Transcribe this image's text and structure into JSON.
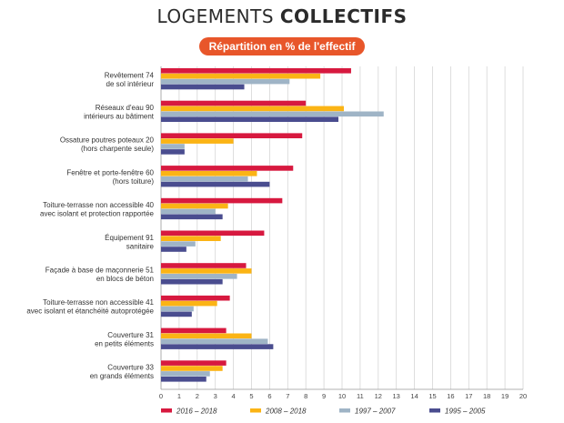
{
  "header": {
    "title_part1": "LOGEMENTS ",
    "title_part2": "COLLECTIFS",
    "subtitle": "Répartition en % de l'effectif"
  },
  "chart_data": {
    "type": "bar",
    "orientation": "horizontal",
    "title": "LOGEMENTS COLLECTIFS",
    "subtitle": "Répartition en % de l'effectif",
    "xlim": [
      0,
      20
    ],
    "xticks": [
      0,
      1,
      2,
      3,
      4,
      5,
      6,
      7,
      8,
      9,
      10,
      11,
      12,
      13,
      14,
      15,
      16,
      17,
      18,
      19,
      20
    ],
    "grid": true,
    "legend_position": "bottom",
    "categories": [
      {
        "line1": "Revêtement 74",
        "line2": "de sol intérieur"
      },
      {
        "line1": "Réseaux d'eau 90",
        "line2": "intérieurs au bâtiment"
      },
      {
        "line1": "Ossature poutres poteaux 20",
        "line2": "(hors charpente seule)"
      },
      {
        "line1": "Fenêtre et porte-fenêtre 60",
        "line2": "(hors toiture)"
      },
      {
        "line1": "Toiture-terrasse non accessible 40",
        "line2": "avec isolant et protection rapportée"
      },
      {
        "line1": "Équipement 91",
        "line2": "sanitaire"
      },
      {
        "line1": "Façade à base de maçonnerie 51",
        "line2": "en blocs de béton"
      },
      {
        "line1": "Toiture-terrasse non accessible 41",
        "line2": "avec isolant et étanchéité autoprotégée"
      },
      {
        "line1": "Couverture 31",
        "line2": "en petits éléments"
      },
      {
        "line1": "Couverture 33",
        "line2": "en grands éléments"
      }
    ],
    "series": [
      {
        "name": "2016 – 2018",
        "color": "#d7193f",
        "values": [
          10.5,
          8.0,
          7.8,
          7.3,
          6.7,
          5.7,
          4.7,
          3.8,
          3.6,
          3.6
        ]
      },
      {
        "name": "2008 – 2018",
        "color": "#fbb415",
        "values": [
          8.8,
          10.1,
          4.0,
          5.3,
          3.7,
          3.3,
          5.0,
          3.1,
          5.0,
          3.4
        ]
      },
      {
        "name": "1997 – 2007",
        "color": "#9fb4c6",
        "values": [
          7.1,
          12.3,
          1.3,
          4.8,
          3.0,
          1.9,
          4.2,
          1.8,
          5.9,
          2.7
        ]
      },
      {
        "name": "1995 – 2005",
        "color": "#4a4d8f",
        "values": [
          4.6,
          9.8,
          1.3,
          6.0,
          3.4,
          1.4,
          3.4,
          1.7,
          6.2,
          2.5
        ]
      }
    ]
  }
}
